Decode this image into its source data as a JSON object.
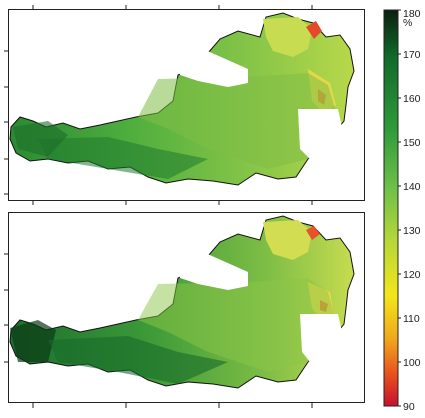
{
  "legend": {
    "unit": "%",
    "ticks": [
      180,
      170,
      160,
      150,
      140,
      130,
      120,
      110,
      100,
      90
    ],
    "range": [
      90,
      180
    ],
    "colors": {
      "low": "#c8102e",
      "mid_orange": "#f08a1c",
      "yellow": "#f2e61a",
      "yellow_green": "#b5d63a",
      "light_green": "#6ec04a",
      "green": "#2f9a3a",
      "dark_green": "#116a2a",
      "near_black": "#0a2010"
    }
  },
  "maps": [
    {
      "id": "top",
      "region": "Austria",
      "dominant_value": 140
    },
    {
      "id": "bottom",
      "region": "Austria",
      "dominant_value": 130
    }
  ],
  "outline_color": "#111111",
  "frame_color": "#222222"
}
